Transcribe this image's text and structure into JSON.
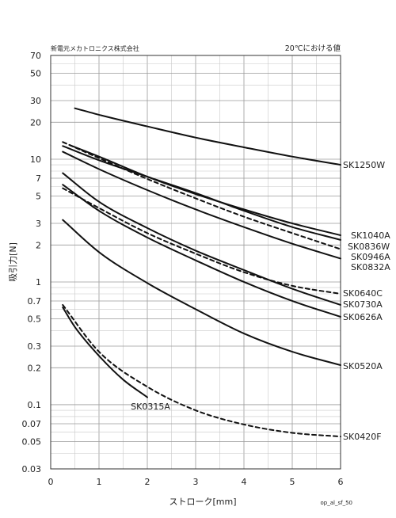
{
  "chart_data": {
    "type": "line",
    "company": "新電元メカトロニクス株式会社",
    "note": "20℃における値",
    "xlabel": "ストローク[mm]",
    "ylabel": "吸引力[N]",
    "footer_code": "op_al_sf_50",
    "x_scale": "linear",
    "y_scale": "log",
    "xlim": [
      0,
      6
    ],
    "ylim": [
      0.03,
      70
    ],
    "grid": true,
    "x_ticks": [
      0,
      1,
      2,
      3,
      4,
      5,
      6
    ],
    "x_tick_labels": [
      "0",
      "1",
      "2",
      "3",
      "4",
      "5",
      "6"
    ],
    "y_ticks": [
      0.03,
      0.05,
      0.07,
      0.1,
      0.2,
      0.3,
      0.5,
      0.7,
      1,
      2,
      3,
      5,
      7,
      10,
      20,
      30,
      50,
      70
    ],
    "y_tick_labels": [
      "0.03",
      "0.05",
      "0.07",
      "0.1",
      "0.2",
      "0.3",
      "0.5",
      "0.7",
      "1",
      "2",
      "3",
      "5",
      "7",
      "10",
      "20",
      "30",
      "50",
      "70"
    ],
    "series": [
      {
        "name": "SK1250W",
        "style": "solid",
        "x": [
          0.5,
          1,
          2,
          3,
          4,
          5,
          6
        ],
        "y": [
          26,
          23,
          18.5,
          15,
          12.5,
          10.5,
          9
        ]
      },
      {
        "name": "SK1040A",
        "style": "solid",
        "x": [
          0.4,
          1,
          2,
          3,
          4,
          5,
          6
        ],
        "y": [
          13,
          10.5,
          7.2,
          5.2,
          3.9,
          3,
          2.4
        ]
      },
      {
        "name": "SK0836W",
        "style": "dashed",
        "x": [
          0.25,
          1,
          2,
          3,
          4,
          5,
          6
        ],
        "y": [
          13.8,
          10.2,
          6.9,
          4.8,
          3.4,
          2.5,
          1.85
        ]
      },
      {
        "name": "SK0946A",
        "style": "solid",
        "x": [
          0.25,
          1,
          2,
          3,
          4,
          5,
          6
        ],
        "y": [
          12.8,
          9.8,
          7.2,
          5.3,
          3.8,
          2.8,
          2.2
        ]
      },
      {
        "name": "SK0832A",
        "style": "solid",
        "x": [
          0.25,
          1,
          2,
          3,
          4,
          5,
          6
        ],
        "y": [
          11.5,
          8.3,
          5.6,
          3.9,
          2.8,
          2.05,
          1.55
        ]
      },
      {
        "name": "SK0640C",
        "style": "dashed",
        "x": [
          0.25,
          1,
          2,
          3,
          4,
          5,
          6
        ],
        "y": [
          5.8,
          4,
          2.5,
          1.7,
          1.2,
          0.93,
          0.8
        ]
      },
      {
        "name": "SK0730A",
        "style": "solid",
        "x": [
          0.25,
          1,
          2,
          3,
          4,
          5,
          6
        ],
        "y": [
          7.7,
          4.5,
          2.75,
          1.8,
          1.25,
          0.88,
          0.65
        ]
      },
      {
        "name": "SK0626A",
        "style": "solid",
        "x": [
          0.25,
          1,
          2,
          3,
          4,
          5,
          6
        ],
        "y": [
          6.2,
          3.8,
          2.3,
          1.5,
          1.0,
          0.7,
          0.52
        ]
      },
      {
        "name": "SK0520A",
        "style": "solid",
        "x": [
          0.25,
          1,
          2,
          3,
          4,
          5,
          6
        ],
        "y": [
          3.2,
          1.75,
          0.98,
          0.6,
          0.38,
          0.27,
          0.21
        ]
      },
      {
        "name": "SK0420F",
        "style": "dashed",
        "x": [
          0.25,
          1,
          2,
          3,
          4,
          5,
          6
        ],
        "y": [
          0.65,
          0.27,
          0.14,
          0.09,
          0.069,
          0.059,
          0.055
        ]
      },
      {
        "name": "SK0315A",
        "style": "solid",
        "x": [
          0.25,
          0.5,
          1,
          1.5,
          2
        ],
        "y": [
          0.62,
          0.43,
          0.25,
          0.16,
          0.115
        ]
      }
    ]
  }
}
